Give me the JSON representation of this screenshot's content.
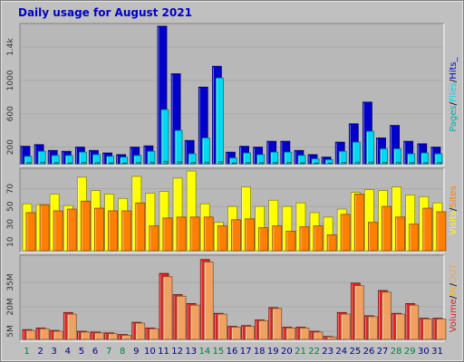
{
  "title": "Daily usage for August 2021",
  "colors": {
    "background": "#c0c0c0",
    "panel": "#b8b8b8",
    "hits": "#0000c8",
    "files": "#00d8f0",
    "pages": "#00b0b0",
    "visits": "#ffff00",
    "sites": "#ff8000",
    "volume": "#e02020",
    "in": "#ffb000",
    "out": "#f0a060",
    "weekend": "#008040",
    "weekday": "#000080"
  },
  "chart_data": [
    {
      "type": "bar",
      "name": "hits-files-pages",
      "categories": [
        "1",
        "2",
        "3",
        "4",
        "5",
        "6",
        "7",
        "8",
        "9",
        "10",
        "11",
        "12",
        "13",
        "14",
        "15",
        "16",
        "17",
        "18",
        "19",
        "20",
        "21",
        "22",
        "23",
        "24",
        "25",
        "26",
        "27",
        "28",
        "29",
        "30",
        "31"
      ],
      "weekend_days": [
        "1",
        "7",
        "8",
        "14",
        "15",
        "21",
        "22",
        "28",
        "29"
      ],
      "ylabel_parts": [
        "Pages",
        "Files",
        "Hits"
      ],
      "ylabel_trailing": "_",
      "yticks": [
        "200",
        "600",
        "1000",
        "1.4k"
      ],
      "ylim": [
        0,
        1650
      ],
      "series": [
        {
          "name": "Hits",
          "values": [
            210,
            230,
            160,
            150,
            200,
            160,
            130,
            110,
            200,
            215,
            1650,
            1080,
            280,
            920,
            1170,
            140,
            210,
            200,
            270,
            270,
            160,
            110,
            80,
            260,
            480,
            740,
            310,
            460,
            270,
            240,
            200
          ]
        },
        {
          "name": "Files",
          "values": [
            90,
            150,
            100,
            100,
            140,
            110,
            90,
            80,
            100,
            150,
            650,
            400,
            120,
            310,
            1030,
            70,
            130,
            110,
            140,
            140,
            100,
            60,
            50,
            150,
            260,
            390,
            180,
            180,
            120,
            130,
            120
          ]
        },
        {
          "name": "Pages",
          "values": [
            15,
            20,
            15,
            12,
            18,
            14,
            12,
            10,
            16,
            20,
            30,
            25,
            16,
            20,
            25,
            10,
            15,
            14,
            17,
            17,
            13,
            9,
            8,
            16,
            20,
            22,
            18,
            20,
            16,
            14,
            15
          ]
        }
      ]
    },
    {
      "type": "bar",
      "name": "visits-sites",
      "categories": [
        "1",
        "2",
        "3",
        "4",
        "5",
        "6",
        "7",
        "8",
        "9",
        "10",
        "11",
        "12",
        "13",
        "14",
        "15",
        "16",
        "17",
        "18",
        "19",
        "20",
        "21",
        "22",
        "23",
        "24",
        "25",
        "26",
        "27",
        "28",
        "29",
        "30",
        "31"
      ],
      "ylabel_parts": [
        "Visits",
        "Sites"
      ],
      "yticks": [
        "10",
        "30",
        "50",
        "70"
      ],
      "ylim": [
        0,
        90
      ],
      "series": [
        {
          "name": "Visits",
          "values": [
            53,
            52,
            64,
            51,
            83,
            68,
            64,
            59,
            84,
            65,
            67,
            82,
            90,
            53,
            32,
            50,
            72,
            50,
            57,
            50,
            54,
            43,
            38,
            47,
            66,
            69,
            68,
            72,
            63,
            61,
            54
          ]
        },
        {
          "name": "Sites",
          "values": [
            43,
            52,
            45,
            47,
            56,
            48,
            45,
            45,
            54,
            28,
            37,
            38,
            38,
            38,
            28,
            35,
            36,
            26,
            28,
            22,
            27,
            28,
            18,
            41,
            64,
            32,
            50,
            38,
            30,
            48,
            44
          ]
        }
      ]
    },
    {
      "type": "bar",
      "name": "volume",
      "categories": [
        "1",
        "2",
        "3",
        "4",
        "5",
        "6",
        "7",
        "8",
        "9",
        "10",
        "11",
        "12",
        "13",
        "14",
        "15",
        "16",
        "17",
        "18",
        "19",
        "20",
        "21",
        "22",
        "23",
        "24",
        "25",
        "26",
        "27",
        "28",
        "29",
        "30",
        "31"
      ],
      "ylabel_parts": [
        "Volume",
        "IN",
        "OUT"
      ],
      "ylabel_separator": "/",
      "yticks": [
        "5M",
        "20M",
        "35M"
      ],
      "ylim": [
        0,
        50
      ],
      "series": [
        {
          "name": "Volume",
          "values": [
            6,
            7,
            5.5,
            16.5,
            5,
            4.5,
            4,
            3,
            10.5,
            7,
            40.5,
            27.5,
            22,
            49,
            16,
            8,
            8.5,
            12,
            19.5,
            7.5,
            7.5,
            5,
            1.8,
            16.5,
            34.5,
            14.5,
            30,
            16,
            22,
            13,
            13
          ]
        },
        {
          "name": "OUT",
          "values": [
            5.5,
            6.5,
            5,
            15.5,
            4.5,
            4,
            3.5,
            2.5,
            10,
            6.5,
            38.5,
            26.5,
            21,
            47.5,
            15.5,
            7.5,
            8,
            11.5,
            19,
            7,
            7,
            4.5,
            1.5,
            15.5,
            33,
            14,
            29,
            15.5,
            21,
            12.5,
            12.5
          ]
        }
      ]
    }
  ]
}
